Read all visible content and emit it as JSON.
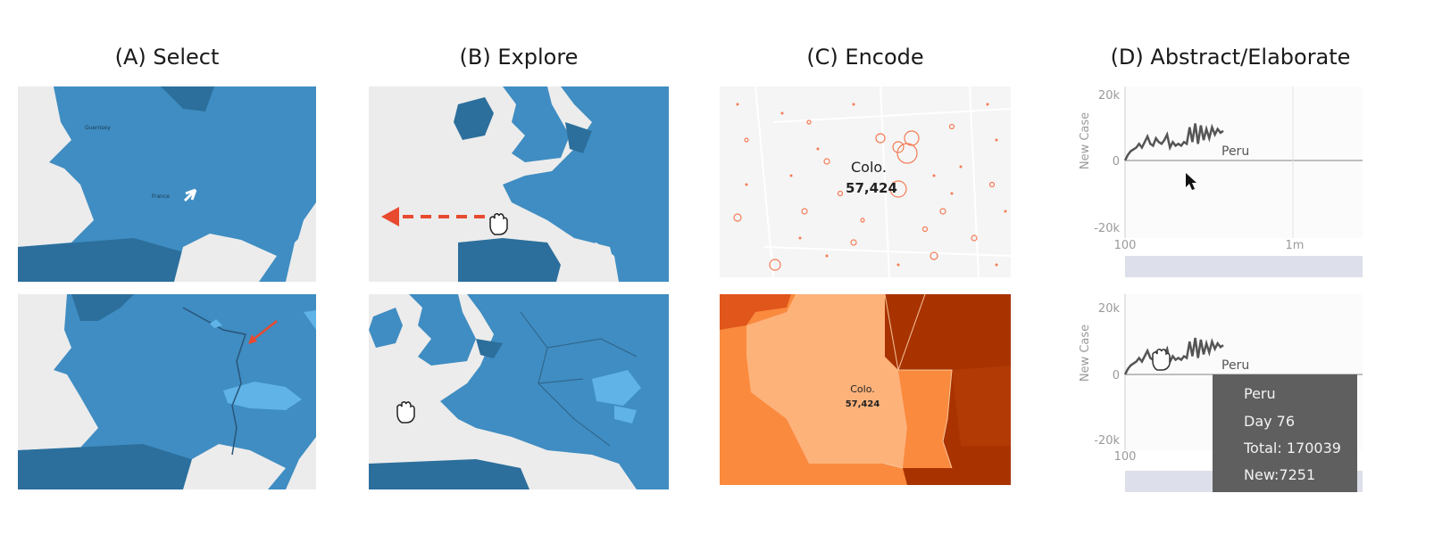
{
  "columns": [
    {
      "title": "(A) Select"
    },
    {
      "title": "(B) Explore"
    },
    {
      "title": "(C) Encode"
    },
    {
      "title": "(D) Abstract/Elaborate"
    }
  ],
  "colors": {
    "ocean": "#ececec",
    "land": "#3f8dc2",
    "land_dark": "#2c6f9c",
    "land_light": "#5fb3e6",
    "arrow_red": "#e84a2f",
    "bubble": "#f47b55",
    "choropleth": [
      "#e0561b",
      "#fdb27a",
      "#fa8a3e",
      "#a83300"
    ]
  },
  "encode": {
    "top_label_name": "Colo.",
    "top_label_value": "57,424",
    "bottom_label_name": "Colo.",
    "bottom_label_value": "57,424"
  },
  "chart_top": {
    "ylabel": "New Case",
    "y_ticks": [
      "20k",
      "0",
      "-20k"
    ],
    "x_ticks": [
      "100",
      "1m"
    ],
    "series_label": "Peru"
  },
  "chart_bottom": {
    "ylabel": "New Case",
    "y_ticks": [
      "20k",
      "0",
      "-20k"
    ],
    "x_ticks": [
      "100"
    ],
    "series_label": "Peru",
    "tooltip": {
      "line1": "Peru",
      "line2": "Day 76",
      "line3": "Total: 170039",
      "line4": "New:7251"
    }
  },
  "chart_data": [
    {
      "type": "line",
      "ylabel": "New Case",
      "ylim": [
        -20000,
        20000
      ],
      "series": [
        {
          "name": "Peru",
          "y": [
            0,
            1500,
            2500,
            3000,
            3500,
            4500,
            3500,
            5000,
            6500,
            4500,
            4000,
            6000,
            5000,
            4500,
            5500,
            7000,
            3500,
            5000,
            4000,
            4500,
            4000,
            5000,
            4500,
            9000,
            5000,
            10000,
            4500,
            9500,
            5500,
            8500,
            6000,
            9000,
            7000,
            8500,
            7500,
            8000
          ]
        }
      ]
    },
    {
      "type": "line",
      "ylabel": "New Case",
      "ylim": [
        -20000,
        20000
      ],
      "series": [
        {
          "name": "Peru",
          "y": [
            0,
            1500,
            2500,
            3000,
            3500,
            4500,
            3500,
            5000,
            6500,
            4500,
            4000,
            6000,
            5000,
            4500,
            5500,
            7000,
            3500,
            5000,
            4000,
            4500,
            4000,
            5000,
            4500,
            9000,
            5000,
            10000,
            4500,
            9500,
            5500,
            8500,
            6000,
            9000,
            7000,
            8500,
            7500,
            8000
          ]
        }
      ]
    }
  ]
}
